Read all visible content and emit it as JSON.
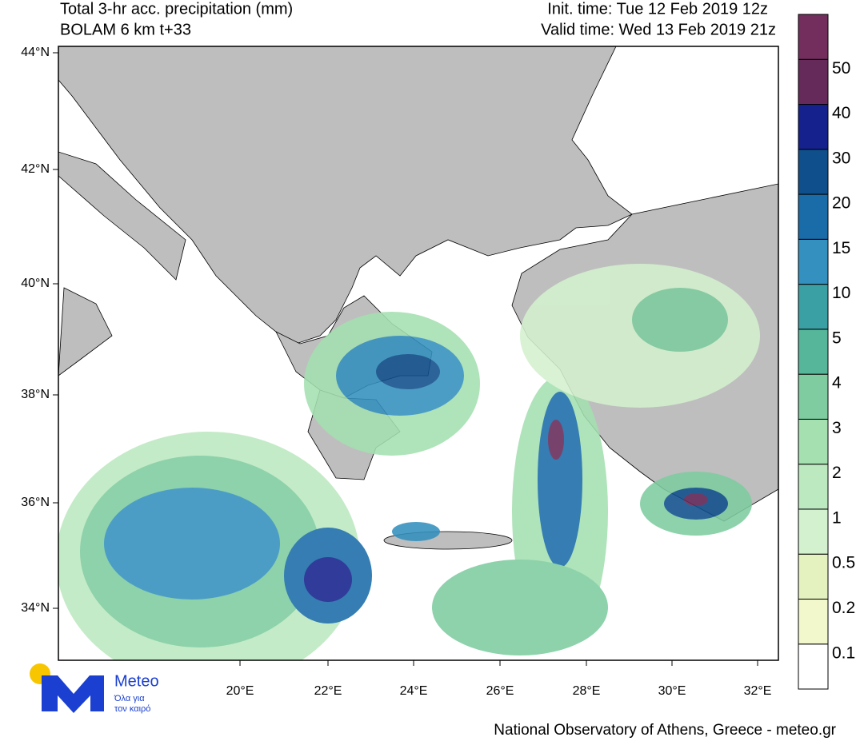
{
  "header": {
    "title": "Total 3-hr acc. precipitation (mm)",
    "subtitle": "BOLAM 6 km t+33",
    "init_time": "Init. time: Tue 12 Feb 2019 12z",
    "valid_time": "Valid time: Wed 13 Feb 2019 21z"
  },
  "map": {
    "lat_labels": [
      "44°N",
      "42°N",
      "40°N",
      "38°N",
      "36°N",
      "34°N"
    ],
    "lon_labels": [
      "20°E",
      "22°E",
      "24°E",
      "26°E",
      "28°E",
      "30°E",
      "32°E"
    ]
  },
  "colorbar": {
    "levels": [
      0.1,
      0.2,
      0.5,
      1,
      2,
      3,
      4,
      5,
      10,
      15,
      20,
      30,
      40,
      50
    ],
    "colors": [
      "#ffffff",
      "#f2f7cc",
      "#e4f2bf",
      "#d4f1cf",
      "#bde9c0",
      "#a4e0b0",
      "#7ecca0",
      "#56b69a",
      "#3aa0a4",
      "#3490bf",
      "#1a6ca8",
      "#0f4f8c",
      "#15218c",
      "#652a5a",
      "#732e5e"
    ]
  },
  "logo": {
    "name": "Meteo",
    "tagline": [
      "Όλα για",
      "τον καιρό"
    ]
  },
  "footer": "National Observatory of Athens, Greece - meteo.gr"
}
